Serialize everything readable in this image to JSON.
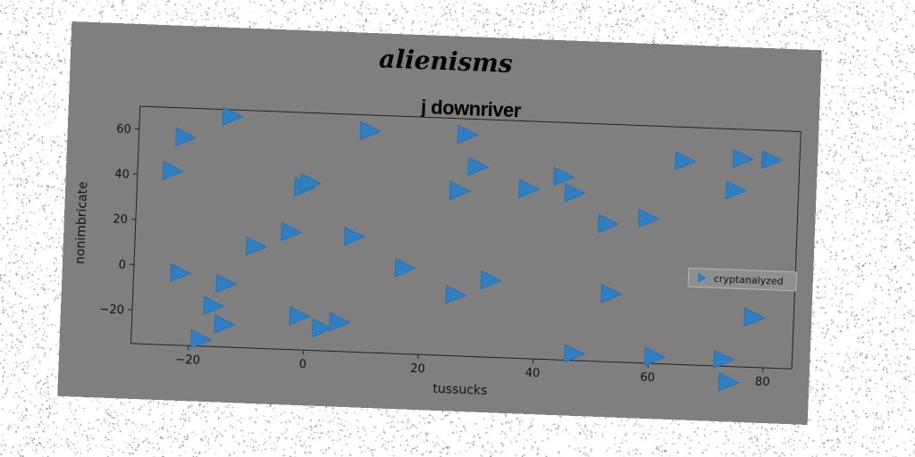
{
  "figure": {
    "suptitle": "alienisms"
  },
  "chart_data": {
    "type": "scatter",
    "title": "j downriver",
    "xlabel": "tussucks",
    "ylabel": "nonimbricate",
    "xlim": [
      -30,
      85
    ],
    "ylim": [
      -35,
      70
    ],
    "xticks": [
      -20,
      0,
      20,
      40,
      60,
      80
    ],
    "yticks": [
      -20,
      0,
      20,
      40,
      60
    ],
    "legend": {
      "position": "center-right",
      "entries": [
        "cryptanalyzed"
      ]
    },
    "marker": "triangle-right",
    "color": "#2f7fc4",
    "grid": false,
    "series": [
      {
        "name": "cryptanalyzed",
        "points": [
          [
            -22,
            57
          ],
          [
            -24,
            42
          ],
          [
            -14,
            67
          ],
          [
            -1,
            37
          ],
          [
            0,
            39
          ],
          [
            10,
            63
          ],
          [
            27,
            63
          ],
          [
            26,
            38
          ],
          [
            29,
            49
          ],
          [
            38,
            40
          ],
          [
            44,
            46
          ],
          [
            46,
            39
          ],
          [
            52,
            26
          ],
          [
            59,
            29
          ],
          [
            65,
            55
          ],
          [
            75,
            57
          ],
          [
            80,
            57
          ],
          [
            74,
            43
          ],
          [
            -22,
            -3
          ],
          [
            -14,
            -7
          ],
          [
            -16,
            -17
          ],
          [
            -14,
            -25
          ],
          [
            -18,
            -32
          ],
          [
            -9,
            10
          ],
          [
            -3,
            17
          ],
          [
            8,
            16
          ],
          [
            17,
            3
          ],
          [
            26,
            -8
          ],
          [
            32,
            -1
          ],
          [
            53,
            -5
          ],
          [
            -1,
            -20
          ],
          [
            3,
            -25
          ],
          [
            6,
            -22
          ],
          [
            47,
            -32
          ],
          [
            61,
            -32
          ],
          [
            73,
            -32
          ],
          [
            74,
            -42
          ],
          [
            78,
            -13
          ]
        ]
      }
    ]
  }
}
